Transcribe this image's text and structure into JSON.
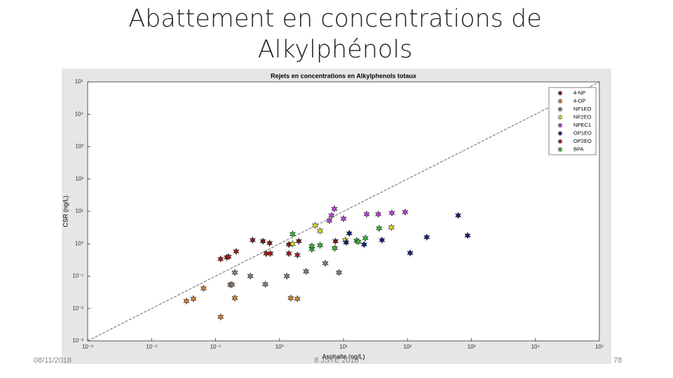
{
  "slide": {
    "title_line1": "Abattement en concentrations de",
    "title_line2": "Alkylphénols",
    "date": "08/11/2018",
    "footer": "8 JSTE 2018",
    "page": "78"
  },
  "chart_data": {
    "type": "scatter",
    "title": "Rejets en concentrations en Alkylphenols totaux",
    "x_label": "Asphalte (ng/L)",
    "y_label": "CSR (ng/L)",
    "xscale": "log",
    "yscale": "log",
    "xlim": [
      0.001,
      100000
    ],
    "ylim": [
      0.001,
      100000
    ],
    "xticks": [
      {
        "value": 0.001,
        "label": "10⁻³"
      },
      {
        "value": 0.01,
        "label": "10⁻²"
      },
      {
        "value": 0.1,
        "label": "10⁻¹"
      },
      {
        "value": 1,
        "label": "10⁰"
      },
      {
        "value": 10,
        "label": "10¹"
      },
      {
        "value": 100,
        "label": "10²"
      },
      {
        "value": 1000,
        "label": "10³"
      },
      {
        "value": 10000,
        "label": "10⁴"
      },
      {
        "value": 100000,
        "label": "10⁵"
      }
    ],
    "yticks": [
      {
        "value": 0.001,
        "label": "10⁻³"
      },
      {
        "value": 0.01,
        "label": "10⁻²"
      },
      {
        "value": 0.1,
        "label": "10⁻¹"
      },
      {
        "value": 1,
        "label": "10⁰"
      },
      {
        "value": 10,
        "label": "10¹"
      },
      {
        "value": 100,
        "label": "10²"
      },
      {
        "value": 1000,
        "label": "10³"
      },
      {
        "value": 10000,
        "label": "10⁴"
      },
      {
        "value": 100000,
        "label": "10⁵"
      }
    ],
    "legend": "upper right",
    "series": [
      {
        "name": "4-NP",
        "color": "#7a1a1a",
        "x": [
          0.38,
          0.55,
          0.7,
          1.4,
          2.0,
          7.5
        ],
        "values": [
          1.3,
          1.2,
          1.05,
          0.95,
          1.2,
          1.2
        ]
      },
      {
        "name": "4-OP",
        "color": "#e08030",
        "x": [
          0.035,
          0.045,
          0.065,
          0.12,
          0.17,
          0.2,
          1.5,
          1.9
        ],
        "values": [
          0.017,
          0.02,
          0.042,
          0.0055,
          0.054,
          0.021,
          0.021,
          0.02
        ]
      },
      {
        "name": "NP1EO",
        "color": "#808080",
        "x": [
          0.2,
          0.35,
          0.6,
          1.3,
          2.6,
          5.2,
          8.5,
          0.18
        ],
        "values": [
          0.13,
          0.1,
          0.056,
          0.1,
          0.14,
          0.25,
          0.13,
          0.055
        ]
      },
      {
        "name": "NP2EO",
        "color": "#e8e020",
        "x": [
          1.6,
          3.6,
          4.3,
          10.7,
          56
        ],
        "values": [
          1.0,
          3.7,
          2.5,
          1.3,
          3.2
        ]
      },
      {
        "name": "NPEC1",
        "color": "#c040e0",
        "x": [
          6,
          7.2,
          10,
          6.5,
          23,
          35,
          57,
          92
        ],
        "values": [
          5.2,
          12,
          6,
          7.5,
          8.2,
          8.2,
          9,
          9.5
        ]
      },
      {
        "name": "OP1EO",
        "color": "#102080",
        "x": [
          12.3,
          11,
          21,
          40,
          110,
          200,
          620,
          870
        ],
        "values": [
          2.1,
          1.1,
          0.95,
          1.3,
          0.52,
          1.6,
          7.5,
          1.8
        ]
      },
      {
        "name": "OP2EO",
        "color": "#b01818",
        "x": [
          0.12,
          0.15,
          0.16,
          0.21,
          0.62,
          0.72,
          1.4,
          1.9
        ],
        "values": [
          0.34,
          0.38,
          0.4,
          0.58,
          0.5,
          0.5,
          0.5,
          0.45
        ]
      },
      {
        "name": "BPA",
        "color": "#30c030",
        "x": [
          1.6,
          3.2,
          3.2,
          4.3,
          7.3,
          16,
          17,
          22,
          36
        ],
        "values": [
          2.0,
          0.68,
          0.85,
          0.9,
          0.73,
          1.25,
          1.15,
          1.5,
          3.0
        ]
      }
    ]
  }
}
